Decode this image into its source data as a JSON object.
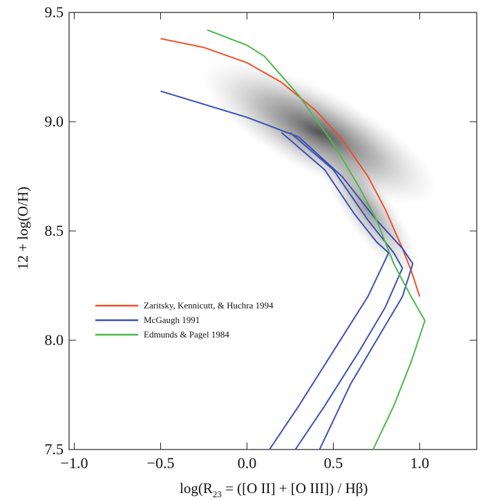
{
  "chart_data": {
    "type": "line",
    "xlabel": [
      "log(R",
      "23",
      " = ([O II] + [O III]) / Hβ)"
    ],
    "ylabel": "12 + log(O/H)",
    "xlim": [
      -1.03,
      1.33
    ],
    "ylim": [
      7.5,
      9.5
    ],
    "xticks": [
      {
        "value": -1.0,
        "label": "−1.0"
      },
      {
        "value": -0.5,
        "label": "−0.5"
      },
      {
        "value": 0,
        "label": "0.0"
      },
      0.5,
      {
        "value": 1.0,
        "label": "1.0"
      }
    ],
    "yticks": [
      7.5,
      {
        "value": 8.0,
        "label": "8.0"
      },
      8.5,
      {
        "value": 9.0,
        "label": "9.0"
      },
      9.5
    ],
    "legend": "center left",
    "series": [
      {
        "name": "Zaritsky, Kennicutt, & Huchra 1994",
        "color": "#f0502a",
        "x": [
          -0.5,
          -0.25,
          0,
          0.2,
          0.4,
          0.55,
          0.7,
          0.8,
          0.9,
          0.95,
          1.0
        ],
        "values": [
          9.38,
          9.34,
          9.27,
          9.18,
          9.05,
          8.92,
          8.75,
          8.6,
          8.42,
          8.32,
          8.2
        ]
      },
      {
        "name": "McGaugh 1991",
        "color": "#3a4fb8",
        "x": [
          -0.5,
          0,
          0.3,
          0.55,
          0.75,
          0.9,
          0.96,
          0.9,
          0.75,
          0.6,
          0.42,
          null,
          0.25,
          0.5,
          0.7,
          0.85,
          0.9,
          0.8,
          0.65,
          0.45,
          0.28,
          null,
          0.2,
          0.45,
          0.62,
          0.75,
          0.82,
          0.7,
          0.5,
          0.3,
          0.13
        ],
        "values": [
          9.14,
          9.02,
          8.93,
          8.75,
          8.55,
          8.42,
          8.35,
          8.2,
          8.0,
          7.8,
          7.5,
          null,
          8.95,
          8.78,
          8.55,
          8.4,
          8.33,
          8.15,
          7.95,
          7.7,
          7.5,
          null,
          8.95,
          8.78,
          8.58,
          8.45,
          8.4,
          8.2,
          7.95,
          7.7,
          7.5
        ]
      },
      {
        "name": "Edmunds & Pagel 1984",
        "color": "#4cb84a",
        "x": [
          -0.23,
          0,
          0.1,
          0.3,
          0.5,
          0.65,
          0.75,
          0.8,
          0.85,
          0.95,
          1.03,
          0.95,
          0.85,
          0.73
        ],
        "values": [
          9.42,
          9.35,
          9.3,
          9.12,
          8.9,
          8.7,
          8.55,
          8.45,
          8.35,
          8.2,
          8.09,
          7.9,
          7.7,
          7.5
        ]
      }
    ]
  }
}
